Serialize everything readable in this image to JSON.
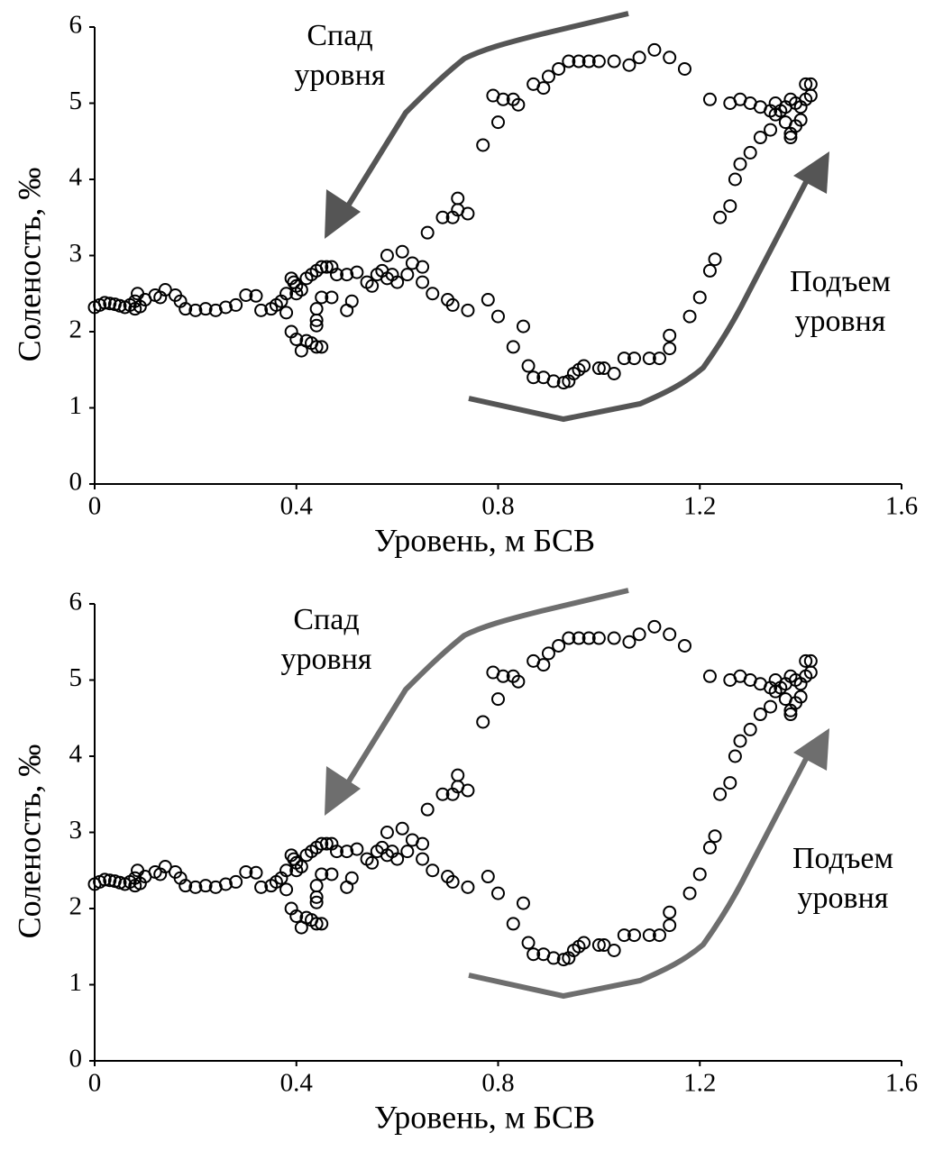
{
  "chart_data": [
    {
      "type": "scatter",
      "xlabel": "Уровень, м БСВ",
      "ylabel": "Соленость, ‰",
      "annotations": [
        [
          "Спад",
          "уровня"
        ],
        [
          "Подъем",
          "уровня"
        ]
      ],
      "color": "#000000",
      "xlim": [
        0,
        1.6
      ],
      "ylim": [
        0,
        6
      ],
      "xticks": [
        0,
        0.4,
        0.8,
        1.2,
        1.6
      ],
      "yticks": [
        0,
        1,
        2,
        3,
        4,
        5,
        6
      ],
      "x": [
        0.0,
        0.01,
        0.02,
        0.03,
        0.04,
        0.05,
        0.06,
        0.07,
        0.08,
        0.08,
        0.09,
        0.085,
        0.1,
        0.12,
        0.13,
        0.14,
        0.16,
        0.17,
        0.18,
        0.2,
        0.22,
        0.24,
        0.26,
        0.28,
        0.3,
        0.32,
        0.33,
        0.35,
        0.36,
        0.37,
        0.38,
        0.38,
        0.39,
        0.395,
        0.4,
        0.4,
        0.39,
        0.4,
        0.41,
        0.42,
        0.43,
        0.44,
        0.45,
        0.41,
        0.42,
        0.43,
        0.44,
        0.45,
        0.46,
        0.47,
        0.48,
        0.44,
        0.45,
        0.44,
        0.44,
        0.47,
        0.5,
        0.51,
        0.5,
        0.52,
        0.54,
        0.55,
        0.56,
        0.57,
        0.58,
        0.59,
        0.6,
        0.61,
        0.58,
        0.62,
        0.63,
        0.65,
        0.65,
        0.66,
        0.67,
        0.69,
        0.7,
        0.71,
        0.72,
        0.72,
        0.71,
        0.74,
        0.74,
        0.78,
        0.8,
        0.83,
        0.85,
        0.86,
        0.87,
        0.89,
        0.91,
        0.93,
        0.94,
        0.95,
        0.96,
        0.97,
        1.0,
        1.01,
        1.03,
        1.05,
        1.07,
        1.1,
        1.12,
        1.14,
        1.14,
        1.18,
        1.2,
        1.22,
        1.23,
        1.24,
        1.26,
        1.27,
        1.28,
        1.3,
        1.32,
        1.34,
        1.35,
        1.36,
        1.37,
        1.38,
        1.38,
        1.39,
        1.4,
        1.41,
        1.42,
        1.42,
        1.41,
        1.4,
        1.39,
        1.38,
        1.37,
        1.35,
        1.34,
        1.32,
        1.3,
        1.28,
        1.26,
        1.22,
        1.17,
        1.14,
        1.11,
        1.08,
        1.06,
        1.03,
        1.0,
        0.98,
        0.96,
        0.94,
        0.92,
        0.9,
        0.89,
        0.87,
        0.84,
        0.83,
        0.81,
        0.79,
        0.8,
        0.77
      ],
      "values": [
        2.32,
        2.35,
        2.38,
        2.37,
        2.36,
        2.34,
        2.32,
        2.35,
        2.4,
        2.3,
        2.33,
        2.5,
        2.42,
        2.48,
        2.45,
        2.55,
        2.48,
        2.4,
        2.3,
        2.28,
        2.3,
        2.28,
        2.32,
        2.35,
        2.48,
        2.47,
        2.28,
        2.3,
        2.35,
        2.4,
        2.25,
        2.5,
        2.7,
        2.65,
        2.6,
        2.5,
        2.0,
        1.9,
        1.75,
        1.88,
        1.85,
        1.8,
        1.8,
        2.55,
        2.7,
        2.75,
        2.8,
        2.85,
        2.85,
        2.85,
        2.75,
        2.3,
        2.45,
        2.15,
        2.08,
        2.45,
        2.28,
        2.4,
        2.75,
        2.78,
        2.65,
        2.6,
        2.75,
        2.8,
        2.7,
        2.75,
        2.65,
        3.05,
        3.0,
        2.75,
        2.9,
        2.85,
        2.65,
        3.3,
        2.5,
        3.5,
        2.42,
        3.5,
        3.6,
        3.75,
        2.35,
        3.55,
        2.28,
        2.42,
        2.2,
        1.8,
        2.07,
        1.55,
        1.4,
        1.4,
        1.35,
        1.33,
        1.35,
        1.45,
        1.5,
        1.55,
        1.52,
        1.52,
        1.45,
        1.65,
        1.65,
        1.65,
        1.65,
        1.78,
        1.95,
        2.2,
        2.45,
        2.8,
        2.95,
        3.5,
        3.65,
        4.0,
        4.2,
        4.35,
        4.55,
        4.65,
        4.85,
        4.9,
        4.75,
        4.6,
        4.55,
        4.7,
        4.78,
        5.05,
        5.1,
        5.25,
        5.25,
        4.95,
        5.0,
        5.05,
        4.95,
        5.0,
        4.9,
        4.95,
        5.0,
        5.05,
        5.0,
        5.05,
        5.45,
        5.6,
        5.7,
        5.6,
        5.5,
        5.55,
        5.55,
        5.55,
        5.55,
        5.55,
        5.45,
        5.35,
        5.2,
        5.25,
        4.98,
        5.05,
        5.05,
        5.1,
        4.75,
        4.45
      ]
    },
    {
      "type": "scatter",
      "xlabel": "Уровень, м БСВ",
      "ylabel": "Соленость, ‰",
      "annotations": [
        [
          "Спад",
          "уровня"
        ],
        [
          "Подъем",
          "уровня"
        ]
      ],
      "color": "#000000",
      "xlim": [
        0,
        1.6
      ],
      "ylim": [
        0,
        6
      ],
      "xticks": [
        0,
        0.4,
        0.8,
        1.2,
        1.6
      ],
      "yticks": [
        0,
        1,
        2,
        3,
        4,
        5,
        6
      ],
      "x": [
        0.0,
        0.01,
        0.02,
        0.03,
        0.04,
        0.05,
        0.06,
        0.07,
        0.08,
        0.08,
        0.09,
        0.085,
        0.1,
        0.12,
        0.13,
        0.14,
        0.16,
        0.17,
        0.18,
        0.2,
        0.22,
        0.24,
        0.26,
        0.28,
        0.3,
        0.32,
        0.33,
        0.35,
        0.36,
        0.37,
        0.38,
        0.38,
        0.39,
        0.395,
        0.4,
        0.4,
        0.39,
        0.4,
        0.41,
        0.42,
        0.43,
        0.44,
        0.45,
        0.41,
        0.42,
        0.43,
        0.44,
        0.45,
        0.46,
        0.47,
        0.48,
        0.44,
        0.45,
        0.44,
        0.44,
        0.47,
        0.5,
        0.51,
        0.5,
        0.52,
        0.54,
        0.55,
        0.56,
        0.57,
        0.58,
        0.59,
        0.6,
        0.61,
        0.58,
        0.62,
        0.63,
        0.65,
        0.65,
        0.66,
        0.67,
        0.69,
        0.7,
        0.71,
        0.72,
        0.72,
        0.71,
        0.74,
        0.74,
        0.78,
        0.8,
        0.83,
        0.85,
        0.86,
        0.87,
        0.89,
        0.91,
        0.93,
        0.94,
        0.95,
        0.96,
        0.97,
        1.0,
        1.01,
        1.03,
        1.05,
        1.07,
        1.1,
        1.12,
        1.14,
        1.14,
        1.18,
        1.2,
        1.22,
        1.23,
        1.24,
        1.26,
        1.27,
        1.28,
        1.3,
        1.32,
        1.34,
        1.35,
        1.36,
        1.37,
        1.38,
        1.38,
        1.39,
        1.4,
        1.41,
        1.42,
        1.42,
        1.41,
        1.4,
        1.39,
        1.38,
        1.37,
        1.35,
        1.34,
        1.32,
        1.3,
        1.28,
        1.26,
        1.22,
        1.17,
        1.14,
        1.11,
        1.08,
        1.06,
        1.03,
        1.0,
        0.98,
        0.96,
        0.94,
        0.92,
        0.9,
        0.89,
        0.87,
        0.84,
        0.83,
        0.81,
        0.79,
        0.8,
        0.77
      ],
      "values": [
        2.32,
        2.35,
        2.38,
        2.37,
        2.36,
        2.34,
        2.32,
        2.35,
        2.4,
        2.3,
        2.33,
        2.5,
        2.42,
        2.48,
        2.45,
        2.55,
        2.48,
        2.4,
        2.3,
        2.28,
        2.3,
        2.28,
        2.32,
        2.35,
        2.48,
        2.47,
        2.28,
        2.3,
        2.35,
        2.4,
        2.25,
        2.5,
        2.7,
        2.65,
        2.6,
        2.5,
        2.0,
        1.9,
        1.75,
        1.88,
        1.85,
        1.8,
        1.8,
        2.55,
        2.7,
        2.75,
        2.8,
        2.85,
        2.85,
        2.85,
        2.75,
        2.3,
        2.45,
        2.15,
        2.08,
        2.45,
        2.28,
        2.4,
        2.75,
        2.78,
        2.65,
        2.6,
        2.75,
        2.8,
        2.7,
        2.75,
        2.65,
        3.05,
        3.0,
        2.75,
        2.9,
        2.85,
        2.65,
        3.3,
        2.5,
        3.5,
        2.42,
        3.5,
        3.6,
        3.75,
        2.35,
        3.55,
        2.28,
        2.42,
        2.2,
        1.8,
        2.07,
        1.55,
        1.4,
        1.4,
        1.35,
        1.33,
        1.35,
        1.45,
        1.5,
        1.55,
        1.52,
        1.52,
        1.45,
        1.65,
        1.65,
        1.65,
        1.65,
        1.78,
        1.95,
        2.2,
        2.45,
        2.8,
        2.95,
        3.5,
        3.65,
        4.0,
        4.2,
        4.35,
        4.55,
        4.65,
        4.85,
        4.9,
        4.75,
        4.6,
        4.55,
        4.7,
        4.78,
        5.05,
        5.1,
        5.25,
        5.25,
        4.95,
        5.0,
        5.05,
        4.95,
        5.0,
        4.9,
        4.95,
        5.0,
        5.05,
        5.0,
        5.05,
        5.45,
        5.6,
        5.7,
        5.6,
        5.5,
        5.55,
        5.55,
        5.55,
        5.55,
        5.55,
        5.45,
        5.35,
        5.2,
        5.25,
        4.98,
        5.05,
        5.05,
        5.1,
        4.75,
        4.45
      ]
    }
  ]
}
